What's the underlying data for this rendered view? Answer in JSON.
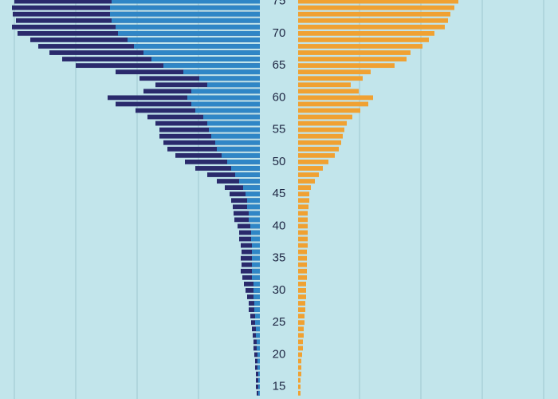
{
  "chart_data": {
    "type": "bar",
    "orientation": "horizontal",
    "overlay": true,
    "grid": true,
    "y": [
      75,
      74,
      73,
      72,
      71,
      70,
      69,
      68,
      67,
      66,
      65,
      64,
      63,
      62,
      61,
      60,
      59,
      58,
      57,
      56,
      55,
      54,
      53,
      52,
      51,
      50,
      49,
      48,
      47,
      46,
      45,
      44,
      43,
      42,
      41,
      40,
      39,
      38,
      37,
      36,
      35,
      34,
      33,
      32,
      31,
      30,
      29,
      28,
      27,
      26,
      25,
      24,
      23,
      22,
      21,
      20,
      19,
      18,
      17,
      16,
      15,
      14
    ],
    "ylim": [
      13.1,
      75.2
    ],
    "yticks": [
      15,
      20,
      25,
      30,
      35,
      40,
      45,
      50,
      55,
      60,
      65,
      70,
      75
    ],
    "xlim": [
      0,
      326
    ],
    "xticks": [
      77,
      154,
      231,
      308
    ],
    "series": [
      {
        "color": "#2a2a6c",
        "side": "left",
        "values": [
          308,
          311,
          310,
          306,
          311,
          304,
          288,
          278,
          264,
          248,
          231,
          181,
          151,
          131,
          146,
          191,
          181,
          156,
          141,
          131,
          126,
          126,
          121,
          116,
          106,
          94,
          81,
          66,
          54,
          44,
          38,
          36,
          34,
          33,
          32,
          28,
          26,
          26,
          24,
          23,
          24,
          23,
          24,
          22,
          20,
          18,
          16,
          14,
          14,
          12,
          11,
          10,
          9,
          8,
          8,
          7,
          6,
          6,
          5,
          5,
          5,
          4
        ]
      },
      {
        "color": "#2f86c6",
        "side": "left",
        "values": [
          186,
          188,
          188,
          186,
          181,
          178,
          166,
          158,
          146,
          136,
          121,
          96,
          76,
          66,
          86,
          91,
          86,
          81,
          71,
          66,
          64,
          61,
          56,
          54,
          48,
          41,
          36,
          31,
          26,
          21,
          18,
          16,
          16,
          14,
          14,
          12,
          11,
          11,
          10,
          10,
          10,
          10,
          10,
          10,
          8,
          8,
          8,
          7,
          7,
          6,
          6,
          5,
          5,
          4,
          4,
          3,
          3,
          3,
          2,
          2,
          2,
          2
        ]
      },
      {
        "color": "#f0a132",
        "side": "right",
        "values": [
          201,
          196,
          191,
          188,
          184,
          171,
          164,
          156,
          141,
          136,
          121,
          91,
          81,
          66,
          76,
          94,
          88,
          78,
          68,
          61,
          58,
          56,
          54,
          51,
          46,
          38,
          31,
          26,
          21,
          16,
          14,
          14,
          13,
          12,
          12,
          12,
          12,
          12,
          12,
          11,
          11,
          11,
          11,
          11,
          10,
          10,
          10,
          9,
          9,
          8,
          8,
          7,
          7,
          6,
          6,
          5,
          4,
          4,
          4,
          3,
          3,
          3
        ]
      }
    ]
  }
}
